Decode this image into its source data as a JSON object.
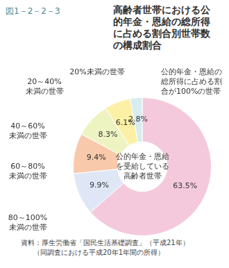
{
  "chart_data": {
    "type": "doughnut",
    "figure_number": "図1－2－2－3",
    "title": "高齢者世帯における公的年金・恩給の総所得に占める割合別世帯数の構成割合",
    "center_text": "公的年金・恩給を受給している高齢者世帯",
    "categories": [
      "公的年金・恩給の総所得に占める割合が100%の世帯",
      "80～100%未満の世帯",
      "60～80%未満の世帯",
      "40～60%未満の世帯",
      "20～40%未満の世帯",
      "20%未満の世帯"
    ],
    "values": [
      63.5,
      9.9,
      9.4,
      8.3,
      6.1,
      2.8
    ],
    "value_labels": [
      "63.5%",
      "9.9%",
      "9.4%",
      "8.3%",
      "6.1%",
      "2.8%"
    ],
    "colors": [
      "#f5c9dc",
      "#dfe7f6",
      "#f8c9aa",
      "#eef3c2",
      "#fbf0a6",
      "#d7edf1"
    ],
    "data_labels": true,
    "source": [
      "資料：厚生労働省「国民生活基礎調査」（平成21年）",
      "（同調査における平成20年1年間の所得）"
    ]
  }
}
